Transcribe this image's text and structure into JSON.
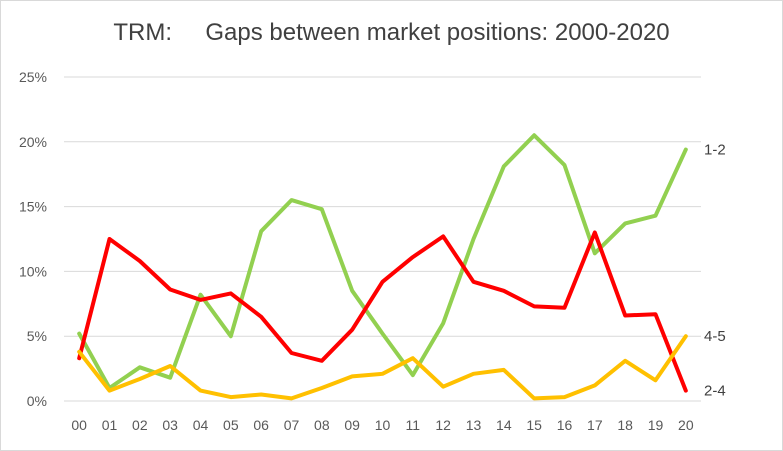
{
  "chart_data": {
    "type": "line",
    "title": "TRM:     Gaps between market positions: 2000-2020",
    "xlabel": "",
    "ylabel": "",
    "categories": [
      "00",
      "01",
      "02",
      "03",
      "04",
      "05",
      "06",
      "07",
      "08",
      "09",
      "10",
      "11",
      "12",
      "13",
      "14",
      "15",
      "16",
      "17",
      "18",
      "19",
      "20"
    ],
    "ylim": [
      0,
      0.25
    ],
    "yticks": [
      0,
      0.05,
      0.1,
      0.15,
      0.2,
      0.25
    ],
    "ytick_labels": [
      "0%",
      "5%",
      "10%",
      "15%",
      "20%",
      "25%"
    ],
    "grid": "horizontal",
    "legend": "none",
    "series": [
      {
        "name": "1-2",
        "color": "#92d050",
        "values": [
          0.052,
          0.01,
          0.026,
          0.018,
          0.082,
          0.05,
          0.131,
          0.155,
          0.148,
          0.085,
          0.052,
          0.02,
          0.06,
          0.125,
          0.181,
          0.205,
          0.182,
          0.114,
          0.137,
          0.143,
          0.194
        ]
      },
      {
        "name": "2-4",
        "color": "#ff0000",
        "values": [
          0.033,
          0.125,
          0.108,
          0.086,
          0.078,
          0.083,
          0.065,
          0.037,
          0.031,
          0.055,
          0.092,
          0.111,
          0.127,
          0.092,
          0.085,
          0.073,
          0.072,
          0.13,
          0.066,
          0.067,
          0.008
        ]
      },
      {
        "name": "4-5",
        "color": "#ffc000",
        "values": [
          0.038,
          0.008,
          0.017,
          0.027,
          0.008,
          0.003,
          0.005,
          0.002,
          0.01,
          0.019,
          0.021,
          0.033,
          0.011,
          0.021,
          0.024,
          0.002,
          0.003,
          0.012,
          0.031,
          0.016,
          0.05
        ]
      }
    ]
  }
}
